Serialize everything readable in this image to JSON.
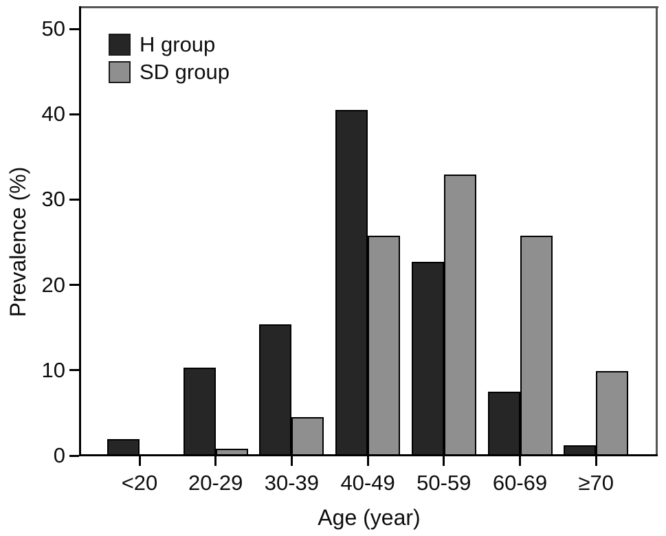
{
  "chart_data": {
    "type": "bar",
    "title": "",
    "xlabel": "Age (year)",
    "ylabel": "Prevalence (%)",
    "categories": [
      "<20",
      "20-29",
      "30-39",
      "40-49",
      "50-59",
      "60-69",
      "≥70"
    ],
    "series": [
      {
        "name": "H group",
        "color": "#262626",
        "values": [
          1.9,
          10.3,
          15.4,
          40.5,
          22.7,
          7.5,
          1.2
        ]
      },
      {
        "name": "SD group",
        "color": "#8f8f8f",
        "values": [
          0.1,
          0.8,
          4.5,
          25.8,
          32.9,
          25.8,
          9.9
        ]
      }
    ],
    "ylim": [
      0,
      52.5
    ],
    "yticks": [
      0,
      10,
      20,
      30,
      40,
      50
    ],
    "grid": false,
    "legend_position": "top-left",
    "bar_border_color": "#000000",
    "axis_color": "#000000",
    "frame_color": "#555555"
  }
}
